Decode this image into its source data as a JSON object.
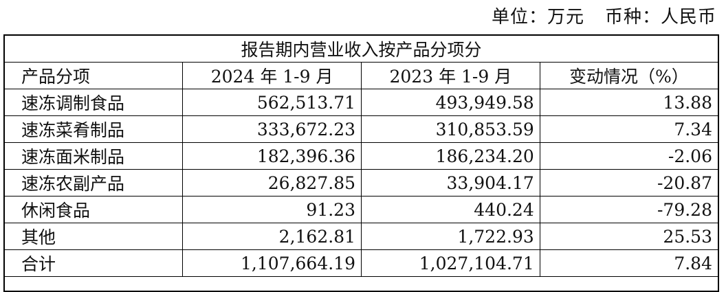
{
  "unit_line": {
    "unit": "单位：万元",
    "currency": "币种：人民币"
  },
  "table": {
    "title": "报告期内营业收入按产品分项分",
    "headers": [
      "产品分项",
      "2024 年 1-9 月",
      "2023 年 1-9 月",
      "变动情况（%）"
    ],
    "rows": [
      [
        "速冻调制食品",
        "562,513.71",
        "493,949.58",
        "13.88"
      ],
      [
        "速冻菜肴制品",
        "333,672.23",
        "310,853.59",
        "7.34"
      ],
      [
        "速冻面米制品",
        "182,396.36",
        "186,234.20",
        "-2.06"
      ],
      [
        "速冻农副产品",
        "26,827.85",
        "33,904.17",
        "-20.87"
      ],
      [
        "休闲食品",
        "91.23",
        "440.24",
        "-79.28"
      ],
      [
        "其他",
        "2,162.81",
        "1,722.93",
        "25.53"
      ],
      [
        "合计",
        "1,107,664.19",
        "1,027,104.71",
        "7.84"
      ]
    ]
  }
}
